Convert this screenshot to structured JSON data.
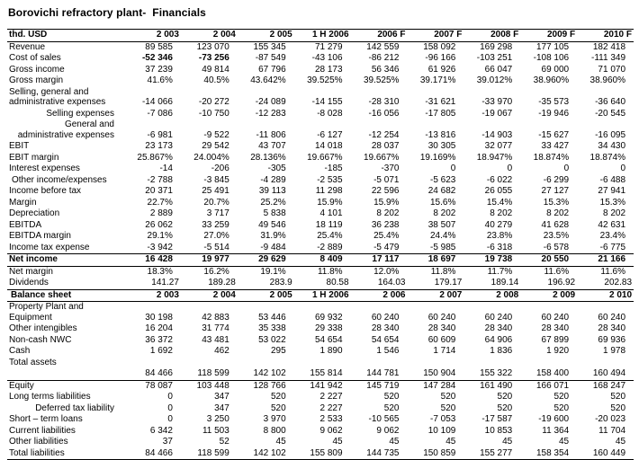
{
  "title": "Borovichi refractory plant-  Financials",
  "colors": {
    "text": "#000000",
    "background": "#ffffff",
    "rule": "#000000"
  },
  "table": {
    "columns": [
      "thd. USD",
      "2 003",
      "2 004",
      "2 005",
      "1 H 2006",
      "2006 F",
      "2007 F",
      "2008 F",
      "2009 F",
      "2010 F"
    ],
    "rows": [
      {
        "label": "Revenue",
        "values": [
          "89 585",
          "123 070",
          "155 345",
          "71 279",
          "142 559",
          "158 092",
          "169 298",
          "177 105",
          "182 418"
        ]
      },
      {
        "label": "Cost of sales",
        "values": [
          "-52 346",
          "-73 256",
          "-87 549",
          "-43 106",
          "-86 212",
          "-96 166",
          "-103 251",
          "-108 106",
          "-111 349"
        ],
        "bold_value_cols": [
          0,
          1
        ]
      },
      {
        "label": "Gross income",
        "values": [
          "37 239",
          "49 814",
          "67 796",
          "28 173",
          "56 346",
          "61 926",
          "66 047",
          "69 000",
          "71 070"
        ]
      },
      {
        "label": "Gross margin",
        "values": [
          "41.6%",
          "40.5%",
          "43.642%",
          "39.525%",
          "39.525%",
          "39.171%",
          "39.012%",
          "38.960%",
          "38.960%"
        ]
      },
      {
        "label": "Selling, general and administrative expenses",
        "values": [
          "-14 066",
          "-20 272",
          "-24 089",
          "-14 155",
          "-28 310",
          "-31 621",
          "-33 970",
          "-35 573",
          "-36 640"
        ]
      },
      {
        "label": "Selling expenses",
        "values": [
          "-7 086",
          "-10 750",
          "-12 283",
          "-8 028",
          "-16 056",
          "-17 805",
          "-19 067",
          "-19 946",
          "-20 545"
        ],
        "label_class": "sub"
      },
      {
        "label": "General and administrative expenses",
        "values": [
          "-6 981",
          "-9 522",
          "-11 806",
          "-6 127",
          "-12 254",
          "-13 816",
          "-14 903",
          "-15 627",
          "-16 095"
        ],
        "label_class": "sub"
      },
      {
        "label": "EBIT",
        "values": [
          "23 173",
          "29 542",
          "43 707",
          "14 018",
          "28 037",
          "30 305",
          "32 077",
          "33 427",
          "34 430"
        ]
      },
      {
        "label": "EBIT margin",
        "values": [
          "25.867%",
          "24.004%",
          "28.136%",
          "19.667%",
          "19.667%",
          "19.169%",
          "18.947%",
          "18.874%",
          "18.874%"
        ]
      },
      {
        "label": "Interest expenses",
        "values": [
          "-14",
          "-206",
          "-305",
          "-185",
          "-370",
          "0",
          "0",
          "0",
          "0"
        ]
      },
      {
        "label": "Other income/expenses",
        "values": [
          "-2 788",
          "-3 845",
          "-4 289",
          "-2 535",
          "-5 071",
          "-5 623",
          "-6 022",
          "-6 299",
          "-6 488"
        ],
        "label_class": "indent"
      },
      {
        "label": "Income before tax",
        "values": [
          "20 371",
          "25 491",
          "39 113",
          "11 298",
          "22 596",
          "24 682",
          "26 055",
          "27 127",
          "27 941"
        ]
      },
      {
        "label": "Margin",
        "values": [
          "22.7%",
          "20.7%",
          "25.2%",
          "15.9%",
          "15.9%",
          "15.6%",
          "15.4%",
          "15.3%",
          "15.3%"
        ]
      },
      {
        "label": "Depreciation",
        "values": [
          "2 889",
          "3 717",
          "5 838",
          "4 101",
          "8 202",
          "8 202",
          "8 202",
          "8 202",
          "8 202"
        ]
      },
      {
        "label": "EBITDA",
        "values": [
          "26 062",
          "33 259",
          "49 546",
          "18 119",
          "36 238",
          "38 507",
          "40 279",
          "41 628",
          "42 631"
        ]
      },
      {
        "label": "EBITDA margin",
        "values": [
          "29.1%",
          "27.0%",
          "31.9%",
          "25.4%",
          "25.4%",
          "24.4%",
          "23.8%",
          "23.5%",
          "23.4%"
        ]
      },
      {
        "label": "Income tax expense",
        "values": [
          "-3 942",
          "-5 514",
          "-9 484",
          "-2 889",
          "-5 479",
          "-5 985",
          "-6 318",
          "-6 578",
          "-6 775"
        ]
      },
      {
        "label": "Net income",
        "values": [
          "16 428",
          "19 977",
          "29 629",
          "8 409",
          "17 117",
          "18 697",
          "19 738",
          "20 550",
          "21 166"
        ],
        "row_class": "total"
      },
      {
        "label": "Net margin",
        "values": [
          "18.3%",
          "16.2%",
          "19.1%",
          "11.8%",
          "12.0%",
          "11.8%",
          "11.7%",
          "11.6%",
          "11.6%"
        ]
      },
      {
        "label": "Dividends",
        "values": [
          "141.27",
          "189.28",
          "283.9",
          "80.58",
          "164.03",
          "179.17",
          "189.14",
          "196.92",
          "202.83"
        ],
        "row_class": "dec"
      },
      {
        "label": "Balance sheet",
        "values": [
          "2 003",
          "2 004",
          "2 005",
          "1 H 2006",
          "2 006",
          "2 007",
          "2 008",
          "2 009",
          "2 010"
        ],
        "row_class": "section"
      },
      {
        "label": "Property Plant and Equipment",
        "values": [
          "30 198",
          "42 883",
          "53 446",
          "69 932",
          "60 240",
          "60 240",
          "60 240",
          "60 240",
          "60 240"
        ]
      },
      {
        "label": "Other intengibles",
        "values": [
          "16 204",
          "31 774",
          "35 338",
          "29 338",
          "28 340",
          "28 340",
          "28 340",
          "28 340",
          "28 340"
        ]
      },
      {
        "label": "Non-cash NWC",
        "values": [
          "36 372",
          "43 481",
          "53 022",
          "54 654",
          "54 654",
          "60 609",
          "64 906",
          "67 899",
          "69 936"
        ]
      },
      {
        "label": "Cash",
        "values": [
          "1 692",
          "462",
          "295",
          "1 890",
          "1 546",
          "1 714",
          "1 836",
          "1 920",
          "1 978"
        ]
      },
      {
        "label": "Total assets",
        "values": [
          "",
          "",
          "",
          "",
          "",
          "",
          "",
          "",
          ""
        ]
      },
      {
        "label": "",
        "values": [
          "84 466",
          "118 599",
          "142 102",
          "155 814",
          "144 781",
          "150 904",
          "155 322",
          "158 400",
          "160 494"
        ],
        "row_class": "underline",
        "name": "total-assets-values"
      },
      {
        "label": "Equity",
        "values": [
          "78 087",
          "103 448",
          "128 766",
          "141 942",
          "145 719",
          "147 284",
          "161 490",
          "166 071",
          "168 247"
        ]
      },
      {
        "label": "Long terms liabilities",
        "values": [
          "0",
          "347",
          "520",
          "2 227",
          "520",
          "520",
          "520",
          "520",
          "520"
        ]
      },
      {
        "label": "Deferred tax liability",
        "values": [
          "0",
          "347",
          "520",
          "2 227",
          "520",
          "520",
          "520",
          "520",
          "520"
        ],
        "label_class": "sub"
      },
      {
        "label": "Short – term loans",
        "values": [
          "0",
          "3 250",
          "3 970",
          "2 533",
          "-10 565",
          "-7 053",
          "-17 587",
          "-19 600",
          "-20 023"
        ]
      },
      {
        "label": "Current liabilities",
        "values": [
          "6 342",
          "11 503",
          "8 800",
          "9 062",
          "9 062",
          "10 109",
          "10 853",
          "11 364",
          "11 704"
        ]
      },
      {
        "label": "Other liabilities",
        "values": [
          "37",
          "52",
          "45",
          "45",
          "45",
          "45",
          "45",
          "45",
          "45"
        ]
      },
      {
        "label": "Total liabilities",
        "values": [
          "84 466",
          "118 599",
          "142 102",
          "155 809",
          "144 735",
          "150 859",
          "155 277",
          "158 354",
          "160 449"
        ],
        "row_class": "bottomline"
      }
    ]
  }
}
